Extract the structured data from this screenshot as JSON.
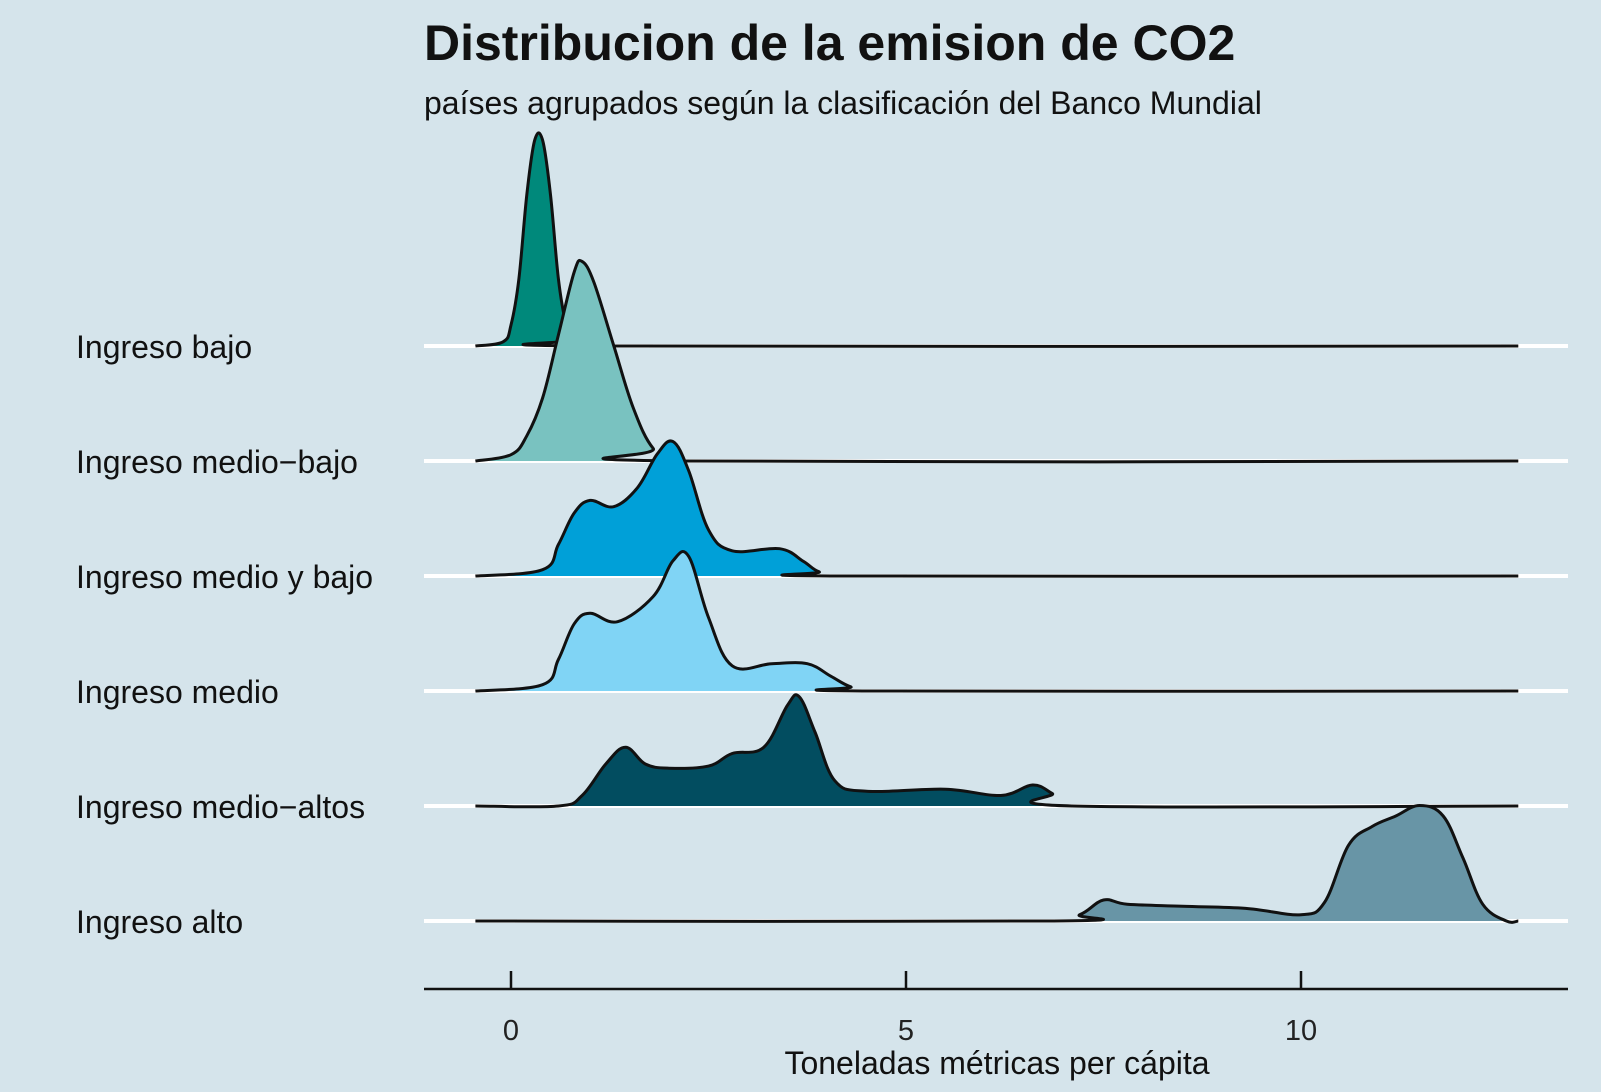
{
  "chart_data": {
    "type": "ridgeline",
    "title": "Distribucion de la emision de CO2",
    "subtitle": "países agrupados según la clasificación del Banco Mundial",
    "xlabel": "Toneladas métricas per cápita",
    "xlim": [
      -0.45,
      12.75
    ],
    "xticks": [
      0,
      5,
      10
    ],
    "grid": "horizontal baselines only",
    "series": [
      {
        "name": "Ingreso bajo",
        "color": "#00897b",
        "points": [
          [
            -0.45,
            0.0
          ],
          [
            -0.1,
            0.02
          ],
          [
            0.0,
            0.1
          ],
          [
            0.1,
            0.32
          ],
          [
            0.2,
            0.72
          ],
          [
            0.3,
            0.98
          ],
          [
            0.4,
            0.98
          ],
          [
            0.5,
            0.72
          ],
          [
            0.6,
            0.32
          ],
          [
            0.7,
            0.1
          ],
          [
            0.8,
            0.03
          ],
          [
            1.2,
            0.0
          ],
          [
            12.75,
            0.0
          ]
        ]
      },
      {
        "name": "Ingreso medio−bajo",
        "color": "#79c2c0",
        "points": [
          [
            -0.45,
            0.0
          ],
          [
            0.0,
            0.03
          ],
          [
            0.2,
            0.12
          ],
          [
            0.4,
            0.3
          ],
          [
            0.6,
            0.6
          ],
          [
            0.8,
            0.9
          ],
          [
            0.9,
            0.95
          ],
          [
            1.05,
            0.85
          ],
          [
            1.3,
            0.55
          ],
          [
            1.55,
            0.25
          ],
          [
            1.8,
            0.06
          ],
          [
            2.1,
            0.0
          ],
          [
            12.75,
            0.0
          ]
        ]
      },
      {
        "name": "Ingreso medio y bajo",
        "color": "#00a0d8",
        "points": [
          [
            -0.45,
            0.0
          ],
          [
            0.4,
            0.03
          ],
          [
            0.6,
            0.15
          ],
          [
            0.8,
            0.3
          ],
          [
            1.0,
            0.36
          ],
          [
            1.3,
            0.33
          ],
          [
            1.6,
            0.42
          ],
          [
            1.85,
            0.58
          ],
          [
            2.05,
            0.64
          ],
          [
            2.25,
            0.5
          ],
          [
            2.5,
            0.22
          ],
          [
            2.8,
            0.12
          ],
          [
            3.4,
            0.13
          ],
          [
            3.7,
            0.07
          ],
          [
            3.9,
            0.02
          ],
          [
            4.2,
            0.0
          ],
          [
            12.75,
            0.0
          ]
        ]
      },
      {
        "name": "Ingreso medio",
        "color": "#80d4f5",
        "points": [
          [
            -0.45,
            0.0
          ],
          [
            0.4,
            0.03
          ],
          [
            0.6,
            0.15
          ],
          [
            0.8,
            0.32
          ],
          [
            1.0,
            0.37
          ],
          [
            1.35,
            0.33
          ],
          [
            1.8,
            0.45
          ],
          [
            2.05,
            0.62
          ],
          [
            2.25,
            0.64
          ],
          [
            2.5,
            0.35
          ],
          [
            2.8,
            0.12
          ],
          [
            3.3,
            0.13
          ],
          [
            3.75,
            0.13
          ],
          [
            4.05,
            0.07
          ],
          [
            4.3,
            0.02
          ],
          [
            4.6,
            0.0
          ],
          [
            12.75,
            0.0
          ]
        ]
      },
      {
        "name": "Ingreso medio−altos",
        "color": "#024d60",
        "points": [
          [
            -0.45,
            0.0
          ],
          [
            0.6,
            0.0
          ],
          [
            0.9,
            0.05
          ],
          [
            1.2,
            0.2
          ],
          [
            1.45,
            0.28
          ],
          [
            1.7,
            0.2
          ],
          [
            2.0,
            0.18
          ],
          [
            2.5,
            0.19
          ],
          [
            2.8,
            0.25
          ],
          [
            3.2,
            0.28
          ],
          [
            3.5,
            0.48
          ],
          [
            3.65,
            0.52
          ],
          [
            3.85,
            0.35
          ],
          [
            4.1,
            0.12
          ],
          [
            4.5,
            0.07
          ],
          [
            5.5,
            0.08
          ],
          [
            6.2,
            0.05
          ],
          [
            6.6,
            0.1
          ],
          [
            6.85,
            0.06
          ],
          [
            7.1,
            0.0
          ],
          [
            12.75,
            0.0
          ]
        ]
      },
      {
        "name": "Ingreso alto",
        "color": "#6895a6",
        "points": [
          [
            -0.45,
            0.0
          ],
          [
            6.8,
            0.0
          ],
          [
            7.2,
            0.03
          ],
          [
            7.5,
            0.1
          ],
          [
            7.8,
            0.08
          ],
          [
            8.5,
            0.07
          ],
          [
            9.3,
            0.06
          ],
          [
            10.0,
            0.03
          ],
          [
            10.3,
            0.09
          ],
          [
            10.6,
            0.36
          ],
          [
            10.9,
            0.45
          ],
          [
            11.2,
            0.5
          ],
          [
            11.5,
            0.55
          ],
          [
            11.8,
            0.5
          ],
          [
            12.05,
            0.3
          ],
          [
            12.3,
            0.08
          ],
          [
            12.6,
            0.0
          ],
          [
            12.75,
            0.0
          ]
        ]
      }
    ]
  }
}
